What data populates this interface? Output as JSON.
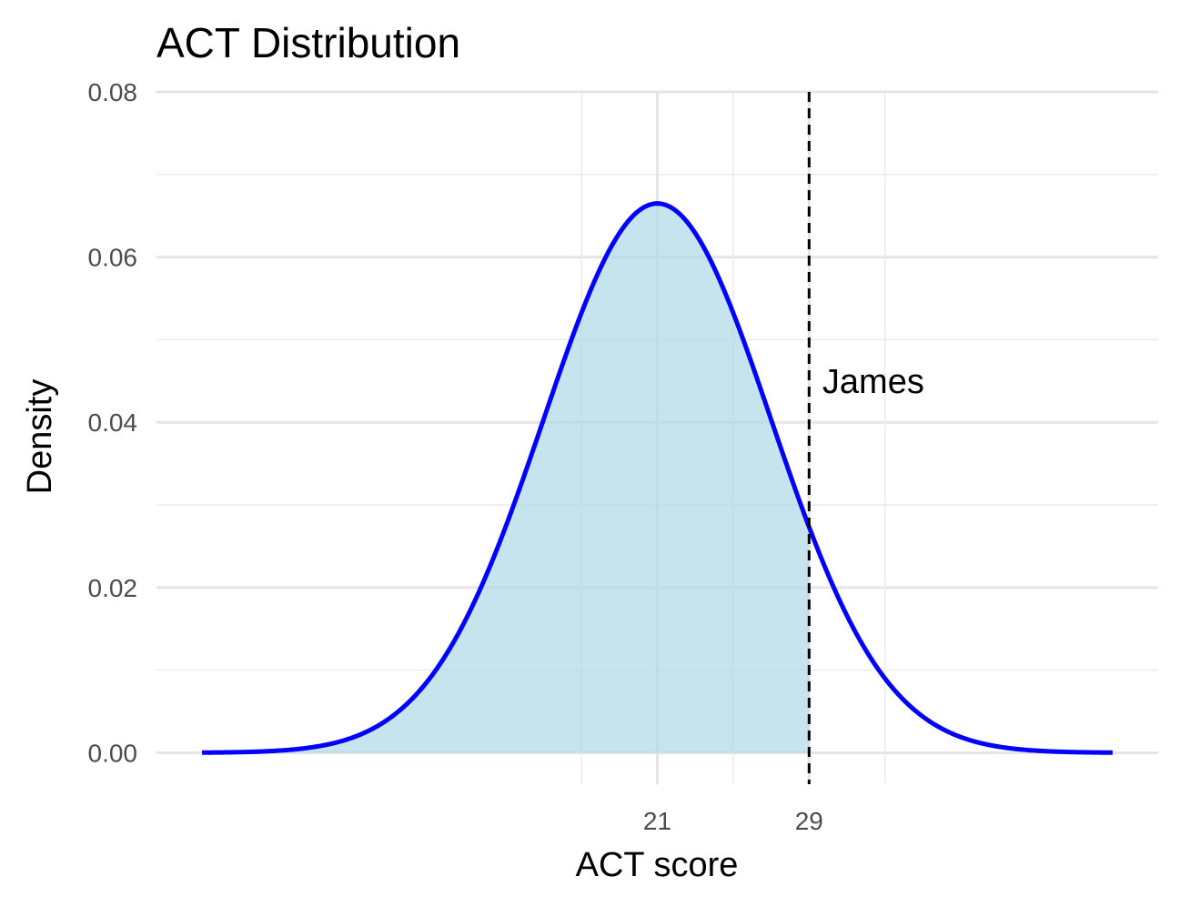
{
  "chart_data": {
    "type": "area",
    "title": "ACT Distribution",
    "xlabel": "ACT score",
    "ylabel": "Density",
    "distribution": {
      "family": "normal",
      "mean": 21,
      "sd": 6
    },
    "x_range": [
      -3,
      45
    ],
    "xlim": [
      -5.4,
      47.4
    ],
    "ylim": [
      -0.0038,
      0.08
    ],
    "x_ticks": [
      21,
      29
    ],
    "x_tick_labels": [
      "21",
      "29"
    ],
    "x_minor_gridlines": [
      17,
      25,
      33
    ],
    "y_ticks": [
      0,
      0.02,
      0.04,
      0.06,
      0.08
    ],
    "y_tick_labels": [
      "0.00",
      "0.02",
      "0.04",
      "0.06",
      "0.08"
    ],
    "y_minor_gridlines": [
      0.01,
      0.03,
      0.05,
      0.07
    ],
    "shaded_region": {
      "from": -3,
      "to": 29,
      "fill": "#add8e6"
    },
    "curve_color": "#0000ff",
    "reference_line": {
      "x": 29,
      "style": "dashed",
      "color": "#000000"
    },
    "annotation": {
      "text": "James",
      "x": 29.7,
      "y": 0.045
    },
    "grid": true,
    "legend": "none"
  }
}
